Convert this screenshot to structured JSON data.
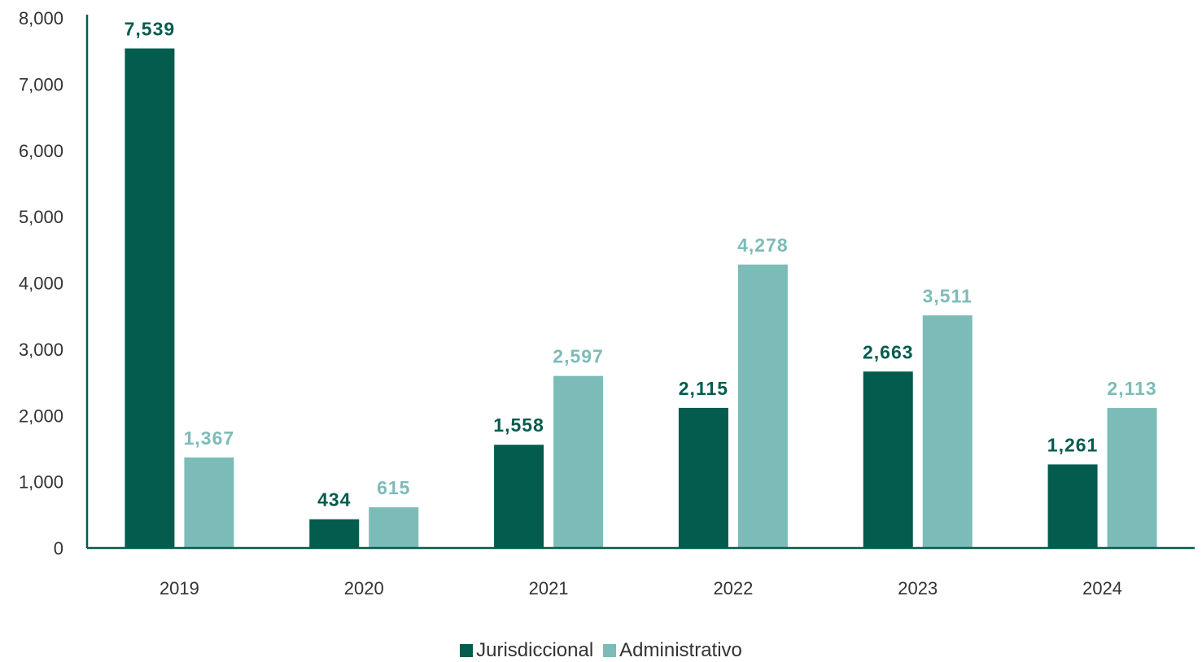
{
  "chart_data": {
    "type": "bar",
    "categories": [
      "2019",
      "2020",
      "2021",
      "2022",
      "2023",
      "2024"
    ],
    "series": [
      {
        "name": "Jurisdiccional",
        "color": "#035c4e",
        "values": [
          7539,
          434,
          1558,
          2115,
          2663,
          1261
        ],
        "labels": [
          "7,539",
          "434",
          "1,558",
          "2,115",
          "2,663",
          "1,261"
        ]
      },
      {
        "name": "Administrativo",
        "color": "#7cbcb8",
        "values": [
          1367,
          615,
          2597,
          4278,
          3511,
          2113
        ],
        "labels": [
          "1,367",
          "615",
          "2,597",
          "4,278",
          "3,511",
          "2,113"
        ]
      }
    ],
    "yticks": [
      "0",
      "1,000",
      "2,000",
      "3,000",
      "4,000",
      "5,000",
      "6,000",
      "7,000",
      "8,000"
    ],
    "ylim": [
      0,
      8000
    ],
    "axis_color": "#035c4e",
    "title": "",
    "xlabel": "",
    "ylabel": "",
    "grid": false,
    "legend_position": "bottom"
  }
}
